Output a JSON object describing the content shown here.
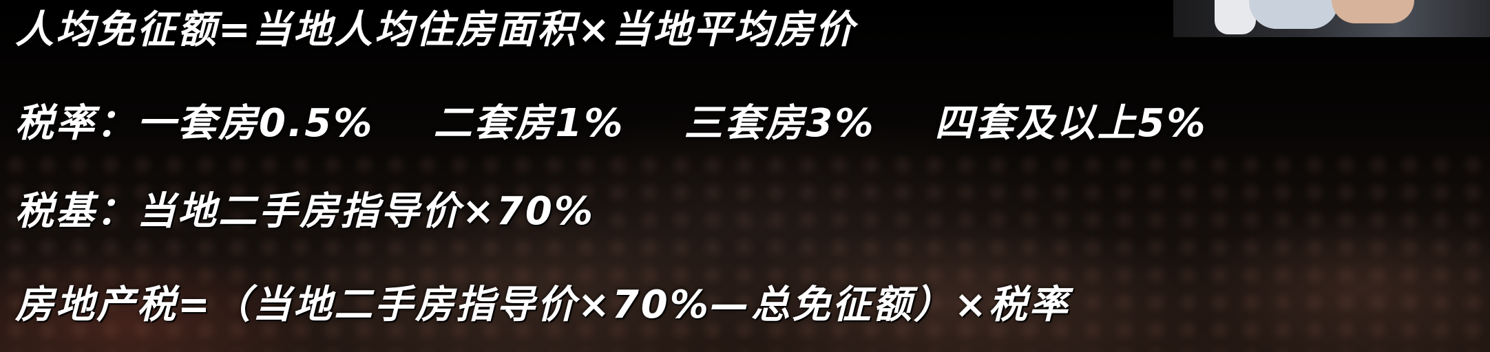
{
  "overlay": {
    "free_amount_formula": "人均免征额=当地人均住房面积×当地平均房价",
    "tax_rate": {
      "label": "税率：",
      "tiers": [
        "一套房0.5%",
        "二套房1%",
        "三套房3%",
        "四套及以上5%"
      ]
    },
    "tax_base": "税基：当地二手房指导价×70%",
    "property_tax_formula": "房地产税=（当地二手房指导价×70%—总免征额）×税率"
  }
}
